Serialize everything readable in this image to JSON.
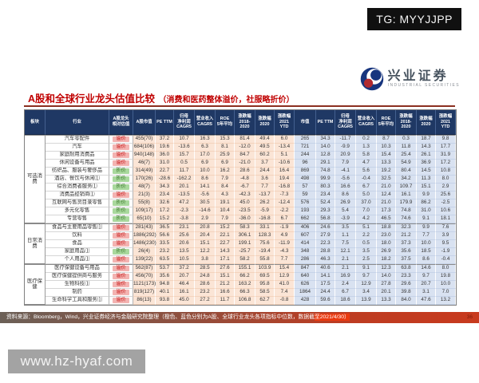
{
  "overlay": {
    "tg_label": "TG: MYYJJPP"
  },
  "brand": {
    "name_cn": "兴业证券",
    "name_en": "INDUSTRIAL SECURITIES"
  },
  "title": {
    "main": "A股和全球行业龙头估值比较",
    "sub": "（消费和医药整体溢价，社服略折价）"
  },
  "colors": {
    "title_red": "#c00000",
    "header_navy": "#1f3864",
    "a_share_cell": "#fbe5d6",
    "global_cell": "#d9e2f1",
    "premium_badge_bg": "#f3b3b1",
    "premium_badge_text": "#c00000",
    "discount_badge_bg": "#a9d89d",
    "discount_badge_text": "#2f6d1f",
    "footer_bar_red": "#c83a1e",
    "footer_highlight": "#ea3a10"
  },
  "table": {
    "headers": [
      "板块",
      "行业",
      "A股龙头\n相对估值",
      "A股市值",
      "PE TTM",
      "归母\n净利润\nCAGR5",
      "营业收入\nCAGR5",
      "ROE\n5年平均",
      "涨跌幅\n2018-\n2020",
      "涨跌幅\n2020",
      "涨跌幅\n2021\nYTD",
      "市值",
      "PE TTM",
      "归母\n净利润\nCAGR5",
      "营业收入\nCAGR5",
      "ROE\n5年平均",
      "涨跌幅\n2018-\n2020",
      "涨跌幅\n2020",
      "涨跌幅\n2021\nYTD"
    ],
    "groups": [
      {
        "label": "可选消费",
        "span": 11
      },
      {
        "label": "日常消费",
        "span": 5
      },
      {
        "label": "医疗保健",
        "span": 5
      }
    ],
    "rows": [
      {
        "industry": "汽车零配件",
        "tag": "溢价",
        "a": [
          "455(70)",
          "37.2",
          "10.7",
          "16.3",
          "15.3",
          "81.4",
          "49.4",
          "6.0"
        ],
        "g": [
          "265",
          "34.3",
          "-11.7",
          "0.2",
          "8.7",
          "0.3",
          "18.7",
          "9.8"
        ]
      },
      {
        "industry": "汽车",
        "tag": "溢价",
        "a": [
          "684(106)",
          "19.6",
          "-13.6",
          "6.3",
          "8.1",
          "-12.0",
          "49.5",
          "-13.4"
        ],
        "g": [
          "721",
          "14.0",
          "-9.9",
          "1.3",
          "10.3",
          "11.8",
          "14.3",
          "17.7"
        ]
      },
      {
        "industry": "家庭耐用消费品",
        "tag": "溢价",
        "a": [
          "940(148)",
          "36.0",
          "15.7",
          "17.0",
          "25.9",
          "84.7",
          "60.2",
          "5.1"
        ],
        "g": [
          "244",
          "12.8",
          "20.9",
          "5.8",
          "15.4",
          "25.4",
          "26.1",
          "31.9"
        ]
      },
      {
        "industry": "休闲设备与用品",
        "tag": "溢价",
        "a": [
          "46(7)",
          "31.0",
          "0.5",
          "6.9",
          "6.9",
          "-21.0",
          "3.7",
          "-10.6"
        ],
        "g": [
          "96",
          "29.1",
          "7.9",
          "4.7",
          "13.3",
          "54.9",
          "36.9",
          "17.2"
        ]
      },
      {
        "industry": "纺织品、服装与奢侈品",
        "tag": "折价",
        "a": [
          "314(49)",
          "22.7",
          "11.7",
          "10.0",
          "16.2",
          "28.6",
          "24.4",
          "16.4"
        ],
        "g": [
          "869",
          "74.8",
          "-4.1",
          "5.6",
          "19.2",
          "80.4",
          "14.5",
          "10.8"
        ]
      },
      {
        "industry": "酒店、餐饮与休闲⑴",
        "tag": "折价",
        "a": [
          "170(26)",
          "-28.6",
          "-162.2",
          "8.6",
          "7.9",
          "-4.8",
          "3.6",
          "19.4"
        ],
        "g": [
          "498",
          "99.9",
          "-5.6",
          "-0.4",
          "32.5",
          "34.2",
          "11.3",
          "8.0"
        ]
      },
      {
        "industry": "综合消费者服务⑴",
        "tag": "折价",
        "a": [
          "48(7)",
          "34.3",
          "20.1",
          "14.1",
          "8.4",
          "-6.7",
          "7.7",
          "-16.8"
        ],
        "g": [
          "57",
          "80.3",
          "16.6",
          "6.7",
          "21.0",
          "109.7",
          "15.1",
          "2.9"
        ]
      },
      {
        "industry": "消费品经销商⑴",
        "tag": "溢价",
        "a": [
          "21(3)",
          "23.4",
          "-13.5",
          "-5.6",
          "4.3",
          "-42.3",
          "-13.7",
          "-7.3"
        ],
        "g": [
          "59",
          "23.4",
          "8.6",
          "5.0",
          "12.4",
          "16.1",
          "9.9",
          "25.6"
        ]
      },
      {
        "industry": "互联网与售货目录零售",
        "tag": "折价",
        "a": [
          "55(8)",
          "32.6",
          "47.2",
          "30.5",
          "19.1",
          "45.0",
          "26.2",
          "-12.4"
        ],
        "g": [
          "576",
          "52.4",
          "26.9",
          "37.0",
          "21.0",
          "179.9",
          "86.2",
          "-2.5"
        ]
      },
      {
        "industry": "多元化零售",
        "tag": "折价",
        "a": [
          "109(17)",
          "17.2",
          "-2.3",
          "-14.6",
          "10.4",
          "-23.5",
          "-5.9",
          "-2.2"
        ],
        "g": [
          "193",
          "29.3",
          "5.4",
          "7.0",
          "17.3",
          "74.8",
          "31.0",
          "10.6"
        ]
      },
      {
        "industry": "专营零售",
        "tag": "折价",
        "a": [
          "65(10)",
          "15.2",
          "-3.8",
          "2.9",
          "7.9",
          "-36.0",
          "-16.8",
          "6.7"
        ],
        "g": [
          "662",
          "56.8",
          "-3.9",
          "4.2",
          "46.5",
          "74.6",
          "9.1",
          "18.1"
        ]
      },
      {
        "industry": "食品与主要用品零售⑴",
        "tag": "溢价",
        "a": [
          "281(43)",
          "36.5",
          "23.1",
          "20.8",
          "15.2",
          "58.3",
          "33.1",
          "-1.9"
        ],
        "g": [
          "406",
          "24.6",
          "3.5",
          "5.1",
          "18.8",
          "32.3",
          "9.9",
          "7.6"
        ]
      },
      {
        "industry": "饮料",
        "tag": "溢价",
        "a": [
          "1886(292)",
          "56.6",
          "25.6",
          "20.4",
          "22.1",
          "306.1",
          "128.3",
          "4.9"
        ],
        "g": [
          "607",
          "27.9",
          "1.1",
          "2.2",
          "23.0",
          "21.2",
          "7.7",
          "3.9"
        ]
      },
      {
        "industry": "食品",
        "tag": "溢价",
        "a": [
          "1486(230)",
          "33.5",
          "20.6",
          "15.1",
          "22.7",
          "199.1",
          "75.6",
          "-11.9"
        ],
        "g": [
          "414",
          "22.3",
          "7.5",
          "0.5",
          "18.0",
          "37.3",
          "10.0",
          "9.5"
        ]
      },
      {
        "industry": "家庭用品⑴",
        "tag": "折价",
        "a": [
          "26(4)",
          "23.2",
          "13.5",
          "12.2",
          "14.3",
          "-25.7",
          "-19.4",
          "-4.3"
        ],
        "g": [
          "348",
          "28.8",
          "12.1",
          "3.5",
          "26.9",
          "35.6",
          "18.5",
          "-1.9"
        ]
      },
      {
        "industry": "个人用品⑴",
        "tag": "溢价",
        "a": [
          "139(22)",
          "63.5",
          "10.5",
          "3.8",
          "17.1",
          "58.2",
          "55.8",
          "7.7"
        ],
        "g": [
          "286",
          "46.3",
          "2.1",
          "2.5",
          "18.2",
          "37.5",
          "8.6",
          "-0.4"
        ]
      },
      {
        "industry": "医疗保健设备与用品",
        "tag": "溢价",
        "a": [
          "562(87)",
          "53.7",
          "37.2",
          "28.5",
          "27.6",
          "155.1",
          "103.9",
          "15.4"
        ],
        "g": [
          "847",
          "40.6",
          "2.1",
          "9.1",
          "12.3",
          "63.8",
          "14.6",
          "8.0"
        ]
      },
      {
        "industry": "医疗保健提供商与服务",
        "tag": "溢价",
        "a": [
          "456(70)",
          "35.6",
          "20.7",
          "24.8",
          "15.1",
          "66.2",
          "69.5",
          "12.9"
        ],
        "g": [
          "640",
          "14.1",
          "16.9",
          "9.7",
          "14.0",
          "23.3",
          "9.7",
          "19.8"
        ]
      },
      {
        "industry": "生物科技⑴",
        "tag": "溢价",
        "a": [
          "1121(173)",
          "94.8",
          "46.4",
          "28.6",
          "21.2",
          "163.2",
          "95.8",
          "41.0"
        ],
        "g": [
          "626",
          "17.5",
          "2.4",
          "12.9",
          "27.8",
          "29.6",
          "20.7",
          "10.0"
        ]
      },
      {
        "industry": "制药",
        "tag": "溢价",
        "a": [
          "819(127)",
          "40.1",
          "16.1",
          "23.2",
          "16.6",
          "66.3",
          "58.5",
          "7.4"
        ],
        "g": [
          "1864",
          "24.4",
          "6.7",
          "3.4",
          "20.1",
          "39.8",
          "3.1",
          "7.0"
        ]
      },
      {
        "industry": "生命科学工具和服务⑴",
        "tag": "溢价",
        "a": [
          "86(13)",
          "93.8",
          "45.0",
          "27.2",
          "11.7",
          "106.8",
          "62.7",
          "-0.8"
        ],
        "g": [
          "428",
          "59.6",
          "18.6",
          "13.9",
          "13.3",
          "84.0",
          "47.6",
          "13.2"
        ]
      }
    ]
  },
  "footer": {
    "source_main": "资料来源：Bloomberg，Wind，兴业证券经济与金融研究院整理（橙色、蓝色分别为A股、全球行业龙头各项指标中位数，数据截",
    "source_highlight": "至2021/4/30）",
    "page_number": "36"
  },
  "watermark": {
    "text": "www.hz-hyaf.com"
  }
}
